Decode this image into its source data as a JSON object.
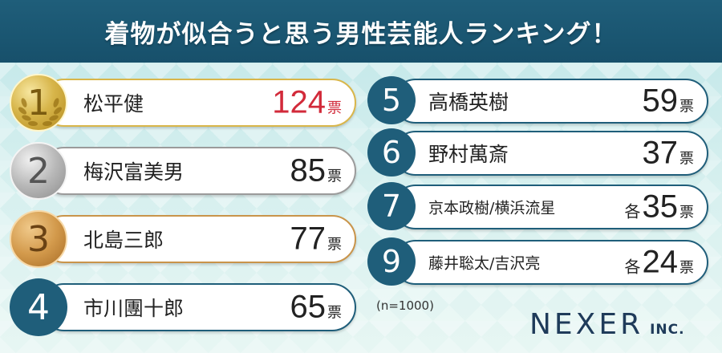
{
  "header": {
    "title": "着物が似合うと思う男性芸能人ランキング！"
  },
  "rankings": [
    {
      "rank": "1",
      "name": "松平健",
      "count": "124",
      "unit": "票",
      "prefix": ""
    },
    {
      "rank": "2",
      "name": "梅沢富美男",
      "count": "85",
      "unit": "票",
      "prefix": ""
    },
    {
      "rank": "3",
      "name": "北島三郎",
      "count": "77",
      "unit": "票",
      "prefix": ""
    },
    {
      "rank": "4",
      "name": "市川團十郎",
      "count": "65",
      "unit": "票",
      "prefix": ""
    },
    {
      "rank": "5",
      "name": "高橋英樹",
      "count": "59",
      "unit": "票",
      "prefix": ""
    },
    {
      "rank": "6",
      "name": "野村萬斎",
      "count": "37",
      "unit": "票",
      "prefix": ""
    },
    {
      "rank": "7",
      "name": "京本政樹/横浜流星",
      "count": "35",
      "unit": "票",
      "prefix": "各"
    },
    {
      "rank": "9",
      "name": "藤井聡太/吉沢亮",
      "count": "24",
      "unit": "票",
      "prefix": "各"
    }
  ],
  "sample_size": "(n=1000)",
  "logo": {
    "brand": "NEXER",
    "suffix": "INC."
  },
  "colors": {
    "header": "#1f5e7a",
    "badge": "#1f5e7a",
    "gold": "#d7b54a",
    "silver": "#b8b8b8",
    "bronze": "#d39a4c",
    "highlight": "#d22a3a"
  },
  "icons": {
    "first_place": "laurel-wreath-icon"
  }
}
